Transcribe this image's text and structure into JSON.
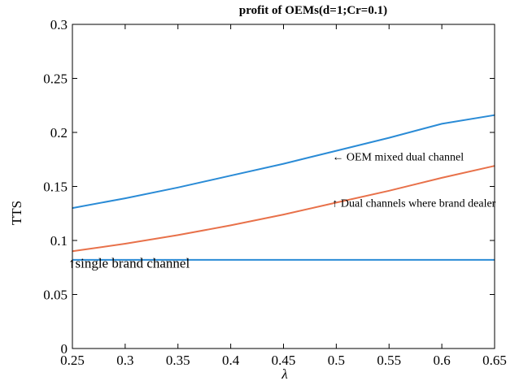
{
  "chart_data": {
    "type": "line",
    "title": "profit of OEMs(d=1;Cr=0.1)",
    "xlabel": "λ",
    "ylabel": "TTS",
    "xlim": [
      0.25,
      0.65
    ],
    "ylim": [
      0,
      0.3
    ],
    "xticks": [
      "0.25",
      "0.3",
      "0.35",
      "0.4",
      "0.45",
      "0.5",
      "0.55",
      "0.6",
      "0.65"
    ],
    "yticks": [
      "0",
      "0.05",
      "0.1",
      "0.15",
      "0.2",
      "0.25",
      "0.3"
    ],
    "grid": false,
    "x": [
      0.25,
      0.3,
      0.35,
      0.4,
      0.45,
      0.5,
      0.55,
      0.6,
      0.65
    ],
    "series": [
      {
        "color": "#2a8bd6",
        "values": [
          0.13,
          0.139,
          0.149,
          0.16,
          0.171,
          0.183,
          0.195,
          0.208,
          0.216
        ]
      },
      {
        "color": "#e8714a",
        "values": [
          0.09,
          0.097,
          0.105,
          0.114,
          0.124,
          0.135,
          0.146,
          0.158,
          0.169
        ]
      },
      {
        "color": "#2a8bd6",
        "values": [
          0.082,
          0.082,
          0.082,
          0.082,
          0.082,
          0.082,
          0.082,
          0.082,
          0.082
        ]
      }
    ],
    "annotations": [
      {
        "text": "← OEM mixed dual channel",
        "x": 0.5,
        "y": 0.178
      },
      {
        "text": "↑ Dual channels where brand dealer",
        "x": 0.5,
        "y": 0.135
      },
      {
        "text": "↑single brand channel",
        "x": 0.25,
        "y": 0.0785
      }
    ]
  }
}
